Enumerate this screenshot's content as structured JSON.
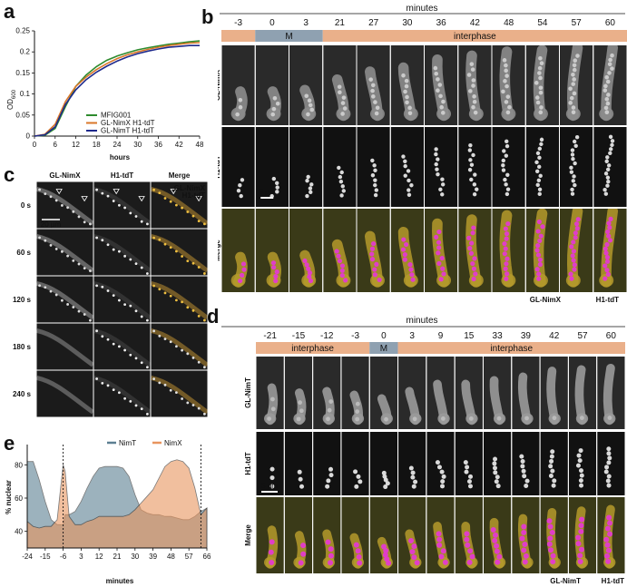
{
  "panels": {
    "a": "a",
    "b": "b",
    "c": "c",
    "d": "d",
    "e": "e"
  },
  "growth": {
    "ylabel": "OD600",
    "ylabel_main": "OD",
    "ylabel_sub": "600",
    "xlabel": "hours",
    "yticks": [
      "0",
      "0.05",
      "0.1",
      "0.15",
      "0.2",
      "0.25"
    ],
    "xticks": [
      "0",
      "6",
      "12",
      "18",
      "24",
      "30",
      "36",
      "42",
      "48"
    ],
    "xmax": 48,
    "ymax": 0.25,
    "colors": [
      "#2e8b2e",
      "#d9772a",
      "#1f2a8c"
    ],
    "legend": [
      "MFIG001",
      "GL-NimX H1-tdT",
      "GL-NimT H1-tdT"
    ]
  },
  "b": {
    "header": "minutes",
    "times": [
      "-3",
      "0",
      "3",
      "21",
      "27",
      "30",
      "36",
      "42",
      "48",
      "54",
      "57",
      "60"
    ],
    "phase_m": "M",
    "phase_interphase": "interphase",
    "rows": [
      "GL-NimX",
      "H1-tdT",
      "Merge"
    ],
    "scale": "5 µm",
    "legend_a": "GL-NimX",
    "legend_b": "H1-tdT",
    "color_a": "#d8b82a",
    "color_b": "#b0179f",
    "phase_interphase_color": "#eab08a",
    "phase_m_color": "#8fa1b1"
  },
  "c": {
    "cols": [
      "GL-NimX",
      "H1-tdT",
      "Merge"
    ],
    "rows": [
      "0 s",
      "60 s",
      "120 s",
      "180 s",
      "240 s"
    ],
    "scale": "20 µm",
    "legend_a": "GL-NimX",
    "legend_b": "H1-tdT"
  },
  "d": {
    "header": "minutes",
    "times": [
      "-21",
      "-15",
      "-12",
      "-3",
      "0",
      "3",
      "9",
      "15",
      "33",
      "39",
      "42",
      "57",
      "60"
    ],
    "phase_m": "M",
    "phase_interphase": "interphase",
    "rows": [
      "GL-NimT",
      "H1-tdT",
      "Merge"
    ],
    "scale": "5 µm",
    "legend_a": "GL-NimT",
    "legend_b": "H1-tdT"
  },
  "e": {
    "ylabel": "% nuclear",
    "xlabel": "minutes",
    "yticks": [
      "40",
      "60",
      "80"
    ],
    "xticks": [
      "-24",
      "-15",
      "-6",
      "3",
      "12",
      "21",
      "30",
      "39",
      "48",
      "57",
      "66"
    ],
    "legend": [
      "NimT",
      "NimX"
    ],
    "colors": [
      "#5c7f92",
      "#e8955e"
    ]
  },
  "chart_data": [
    {
      "type": "line",
      "title": "",
      "xlabel": "hours",
      "ylabel": "OD600",
      "xlim": [
        0,
        48
      ],
      "ylim": [
        0,
        0.25
      ],
      "legend_position": "bottom-right",
      "x": [
        0,
        3,
        6,
        9,
        12,
        15,
        18,
        21,
        24,
        27,
        30,
        33,
        36,
        39,
        42,
        45,
        48
      ],
      "series": [
        {
          "name": "MFIG001",
          "values": [
            0,
            0.002,
            0.018,
            0.07,
            0.118,
            0.145,
            0.165,
            0.18,
            0.19,
            0.198,
            0.205,
            0.21,
            0.214,
            0.218,
            0.221,
            0.224,
            0.226
          ]
        },
        {
          "name": "GL-NimX H1-tdT",
          "values": [
            0,
            0.004,
            0.028,
            0.082,
            0.118,
            0.14,
            0.158,
            0.172,
            0.184,
            0.193,
            0.2,
            0.206,
            0.211,
            0.215,
            0.218,
            0.221,
            0.222
          ]
        },
        {
          "name": "GL-NimT H1-tdT",
          "values": [
            0,
            0.003,
            0.022,
            0.075,
            0.11,
            0.134,
            0.152,
            0.166,
            0.178,
            0.188,
            0.196,
            0.202,
            0.207,
            0.211,
            0.213,
            0.215,
            0.215
          ]
        }
      ]
    },
    {
      "type": "area",
      "title": "",
      "xlabel": "minutes",
      "ylabel": "% nuclear",
      "xlim": [
        -24,
        66
      ],
      "ylim": [
        30,
        90
      ],
      "legend_position": "top-right",
      "vlines": [
        -6,
        63
      ],
      "x": [
        -24,
        -21,
        -18,
        -15,
        -12,
        -9,
        -6,
        -5,
        -3,
        0,
        3,
        6,
        9,
        12,
        15,
        18,
        21,
        24,
        27,
        30,
        33,
        36,
        39,
        42,
        45,
        48,
        51,
        54,
        57,
        60,
        63,
        66
      ],
      "series": [
        {
          "name": "NimT",
          "values": [
            82,
            82,
            71,
            58,
            47,
            44,
            44,
            50,
            50,
            52,
            58,
            66,
            73,
            78,
            79,
            79,
            79,
            78,
            73,
            62,
            53,
            51,
            50,
            50,
            49,
            49,
            48,
            47,
            47,
            49,
            52,
            54
          ]
        },
        {
          "name": "NimX",
          "values": [
            46,
            43,
            42,
            43,
            43,
            47,
            80,
            76,
            49,
            44,
            44,
            46,
            47,
            49,
            49,
            49,
            49,
            49,
            50,
            53,
            57,
            61,
            65,
            72,
            79,
            82,
            83,
            82,
            78,
            66,
            50,
            54
          ]
        }
      ]
    }
  ]
}
